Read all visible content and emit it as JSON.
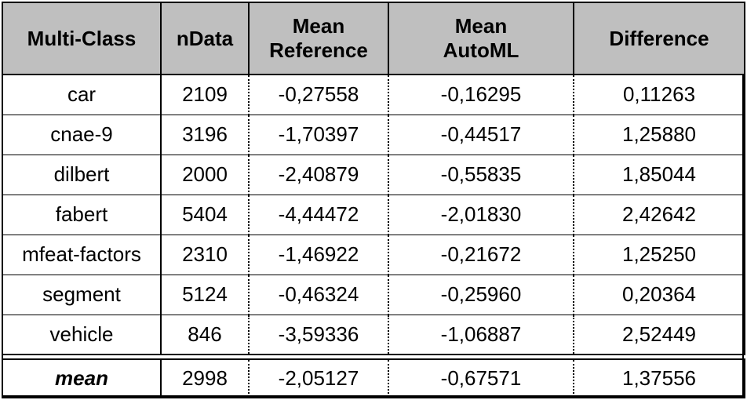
{
  "table": {
    "headers": {
      "col1": "Multi-Class",
      "col2": "nData",
      "col3_line1": "Mean",
      "col3_line2": "Reference",
      "col4_line1": "Mean",
      "col4_line2": "AutoML",
      "col5": "Difference"
    },
    "rows": [
      {
        "name": "car",
        "ndata": "2109",
        "mean_reference": "-0,27558",
        "mean_automl": "-0,16295",
        "difference": "0,11263"
      },
      {
        "name": "cnae-9",
        "ndata": "3196",
        "mean_reference": "-1,70397",
        "mean_automl": "-0,44517",
        "difference": "1,25880"
      },
      {
        "name": "dilbert",
        "ndata": "2000",
        "mean_reference": "-2,40879",
        "mean_automl": "-0,55835",
        "difference": "1,85044"
      },
      {
        "name": "fabert",
        "ndata": "5404",
        "mean_reference": "-4,44472",
        "mean_automl": "-2,01830",
        "difference": "2,42642"
      },
      {
        "name": "mfeat-factors",
        "ndata": "2310",
        "mean_reference": "-1,46922",
        "mean_automl": "-0,21672",
        "difference": "1,25250"
      },
      {
        "name": "segment",
        "ndata": "5124",
        "mean_reference": "-0,46324",
        "mean_automl": "-0,25960",
        "difference": "0,20364"
      },
      {
        "name": "vehicle",
        "ndata": "846",
        "mean_reference": "-3,59336",
        "mean_automl": "-1,06887",
        "difference": "2,52449"
      }
    ],
    "summary": {
      "name": "mean",
      "ndata": "2998",
      "mean_reference": "-2,05127",
      "mean_automl": "-0,67571",
      "difference": "1,37556"
    }
  },
  "colors": {
    "header_background": "#bfbfbf",
    "border": "#000000",
    "text": "#000000"
  }
}
